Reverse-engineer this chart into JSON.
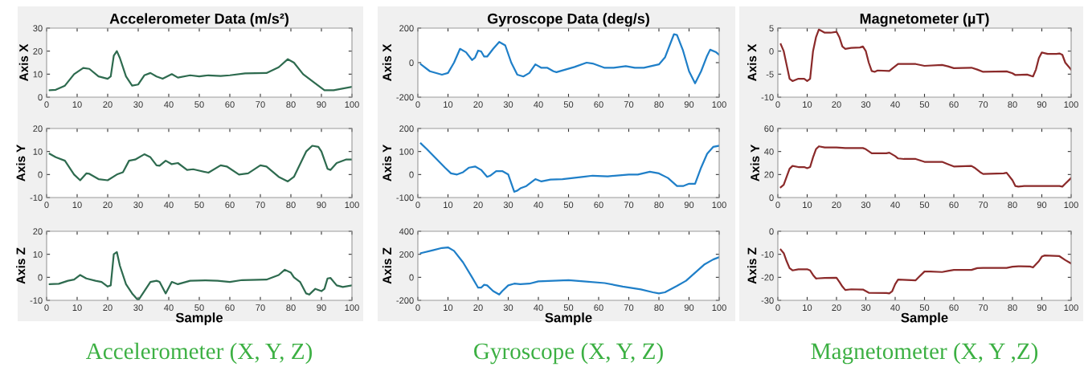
{
  "chart_data": [
    {
      "type": "line",
      "title": "Accelerometer Data (m/s²)",
      "ylabel": "Axis X",
      "color": "#2e6b4f",
      "xlim": [
        0,
        100
      ],
      "xticks": [
        0,
        10,
        20,
        30,
        40,
        50,
        60,
        70,
        80,
        90,
        100
      ],
      "ylim": [
        0,
        30
      ],
      "yticks": [
        0,
        10,
        20,
        30
      ],
      "x": [
        1,
        3,
        6,
        9,
        12,
        14,
        17,
        20,
        21,
        22,
        23,
        24,
        26,
        28,
        30,
        32,
        34,
        36,
        38,
        41,
        43,
        47,
        50,
        53,
        57,
        60,
        65,
        72,
        76,
        79,
        81,
        84,
        88,
        91,
        94,
        100
      ],
      "values": [
        3,
        3.2,
        5,
        10,
        12.7,
        12.3,
        9,
        8,
        9,
        18,
        20,
        17,
        9,
        5,
        5.5,
        9.5,
        10.5,
        9,
        8,
        10,
        8.5,
        9.5,
        9,
        9.5,
        9.2,
        9.5,
        10.3,
        10.5,
        13,
        16.5,
        15,
        10,
        6,
        3,
        3,
        4.5
      ]
    },
    {
      "type": "line",
      "ylabel": "Axis Y",
      "color": "#2e6b4f",
      "xlim": [
        0,
        100
      ],
      "xticks": [
        0,
        10,
        20,
        30,
        40,
        50,
        60,
        70,
        80,
        90,
        100
      ],
      "ylim": [
        -10,
        20
      ],
      "yticks": [
        -10,
        0,
        10,
        20
      ],
      "x": [
        1,
        3,
        6,
        9,
        11,
        13,
        14,
        17,
        20,
        23,
        25,
        27,
        29,
        32,
        34,
        36,
        37,
        39,
        41,
        43,
        46,
        48,
        53,
        57,
        59,
        63,
        66,
        70,
        72,
        76,
        79,
        81,
        85,
        87,
        89,
        90,
        92,
        93,
        95,
        98,
        100
      ],
      "values": [
        9,
        7.5,
        6,
        0,
        -2.5,
        0.5,
        0.3,
        -2,
        -2.5,
        0,
        1,
        6,
        6.5,
        8.8,
        7.5,
        4,
        3.8,
        6,
        4.5,
        5,
        2,
        2.3,
        0.8,
        4,
        3.5,
        0,
        0.5,
        4,
        3.5,
        -1,
        -3,
        -1,
        10,
        12.5,
        12,
        10,
        2.5,
        2,
        5,
        6.5,
        6.5
      ]
    },
    {
      "type": "line",
      "ylabel": "Axis Z",
      "xlabel": "Sample",
      "color": "#2e6b4f",
      "xlim": [
        0,
        100
      ],
      "xticks": [
        0,
        10,
        20,
        30,
        40,
        50,
        60,
        70,
        80,
        90,
        100
      ],
      "ylim": [
        -10,
        20
      ],
      "yticks": [
        -10,
        0,
        10,
        20
      ],
      "annotations": [
        "Accelerometer (X, Y, Z)"
      ],
      "x": [
        1,
        4,
        7,
        9,
        11,
        13,
        16,
        18,
        20,
        21,
        22,
        23,
        24,
        26,
        28,
        30,
        32,
        34,
        36,
        37,
        39,
        41,
        43,
        47,
        52,
        56,
        60,
        64,
        72,
        76,
        78,
        80,
        81,
        83,
        85,
        86,
        88,
        90,
        91,
        92,
        93,
        95,
        97,
        100
      ],
      "values": [
        -3,
        -2.8,
        -1.5,
        -1,
        1,
        -0.5,
        -1.5,
        -2,
        -4,
        -3.5,
        10,
        11,
        5,
        -3,
        -7,
        -10,
        -6,
        -2,
        -1.5,
        -2,
        -7,
        -2,
        -3,
        -1.5,
        -1.3,
        -1.5,
        -2,
        -1.2,
        -1,
        1,
        3.3,
        2,
        0,
        -2,
        -7,
        -7.5,
        -5,
        -6,
        -5,
        -0.5,
        -0.3,
        -3.5,
        -4.2,
        -3.5
      ]
    },
    {
      "type": "line",
      "title": "Gyroscope Data (deg/s)",
      "ylabel": "Axis X",
      "color": "#1f7fc8",
      "xlim": [
        0,
        100
      ],
      "xticks": [
        0,
        10,
        20,
        30,
        40,
        50,
        60,
        70,
        80,
        90,
        100
      ],
      "ylim": [
        -200,
        200
      ],
      "yticks": [
        -200,
        0,
        200
      ],
      "x": [
        1,
        4,
        8,
        10,
        12,
        14,
        16,
        18,
        19,
        20,
        21,
        22,
        23,
        25,
        27,
        29,
        31,
        33,
        35,
        37,
        39,
        41,
        43,
        45,
        46,
        52,
        56,
        58,
        62,
        65,
        69,
        72,
        75,
        80,
        82,
        85,
        86,
        88,
        90,
        92,
        94,
        96,
        97,
        99,
        100
      ],
      "values": [
        -10,
        -50,
        -70,
        -60,
        0,
        80,
        60,
        15,
        30,
        70,
        65,
        35,
        35,
        80,
        120,
        100,
        0,
        -70,
        -80,
        -60,
        -10,
        -30,
        -30,
        -50,
        -55,
        -25,
        0,
        -5,
        -30,
        -30,
        -20,
        -30,
        -30,
        -10,
        30,
        165,
        160,
        70,
        -50,
        -120,
        -50,
        40,
        75,
        60,
        45
      ]
    },
    {
      "type": "line",
      "ylabel": "Axis Y",
      "color": "#1f7fc8",
      "xlim": [
        0,
        100
      ],
      "xticks": [
        0,
        10,
        20,
        30,
        40,
        50,
        60,
        70,
        80,
        90,
        100
      ],
      "ylim": [
        -100,
        200
      ],
      "yticks": [
        -100,
        0,
        100,
        200
      ],
      "x": [
        1,
        3,
        6,
        9,
        11,
        13,
        15,
        17,
        19,
        21,
        23,
        24,
        26,
        28,
        30,
        32,
        33,
        34,
        36,
        39,
        41,
        44,
        48,
        55,
        58,
        63,
        70,
        73,
        77,
        80,
        83,
        86,
        88,
        90,
        92,
        94,
        96,
        98,
        100
      ],
      "values": [
        135,
        110,
        70,
        30,
        5,
        0,
        10,
        30,
        35,
        20,
        -10,
        -5,
        15,
        15,
        0,
        -75,
        -70,
        -60,
        -50,
        -20,
        -30,
        -22,
        -20,
        -10,
        -5,
        -8,
        0,
        0,
        12,
        5,
        -15,
        -50,
        -50,
        -40,
        -40,
        30,
        90,
        120,
        125
      ]
    },
    {
      "type": "line",
      "ylabel": "Axis Z",
      "xlabel": "Sample",
      "color": "#1f7fc8",
      "xlim": [
        0,
        100
      ],
      "xticks": [
        0,
        10,
        20,
        30,
        40,
        50,
        60,
        70,
        80,
        90,
        100
      ],
      "ylim": [
        -200,
        400
      ],
      "yticks": [
        -200,
        0,
        200,
        400
      ],
      "annotations": [
        "Gyroscope (X, Y, Z)"
      ],
      "x": [
        1,
        5,
        8,
        10,
        12,
        15,
        18,
        20,
        21,
        22,
        23,
        25,
        27,
        28,
        30,
        32,
        34,
        37,
        40,
        45,
        50,
        55,
        62,
        68,
        74,
        78,
        80,
        82,
        86,
        89,
        92,
        95,
        98,
        100
      ],
      "values": [
        210,
        235,
        255,
        260,
        230,
        130,
        0,
        -90,
        -90,
        -65,
        -70,
        -120,
        -150,
        -120,
        -70,
        -55,
        -60,
        -55,
        -35,
        -30,
        -25,
        -35,
        -50,
        -80,
        -105,
        -130,
        -140,
        -130,
        -75,
        -30,
        40,
        110,
        155,
        175
      ]
    },
    {
      "type": "line",
      "title": "Magnetometer (µT)",
      "ylabel": "Axis X",
      "color": "#8b2a2a",
      "xlim": [
        0,
        100
      ],
      "xticks": [
        0,
        10,
        20,
        30,
        40,
        50,
        60,
        70,
        80,
        90,
        100
      ],
      "ylim": [
        -10,
        5
      ],
      "yticks": [
        -10,
        -5,
        0,
        5
      ],
      "x": [
        1,
        2,
        3,
        4,
        5,
        7,
        9,
        10,
        11,
        12,
        13,
        14,
        16,
        18,
        20,
        21,
        22,
        23,
        25,
        28,
        29,
        30,
        31,
        32,
        33,
        34,
        38,
        39,
        41,
        47,
        50,
        56,
        58,
        60,
        66,
        68,
        70,
        78,
        80,
        81,
        85,
        87,
        88,
        89,
        90,
        92,
        95,
        96,
        97,
        98,
        100
      ],
      "values": [
        1.5,
        0,
        -3,
        -6,
        -6.5,
        -6,
        -6,
        -6.5,
        -6,
        0,
        3,
        4.7,
        4,
        4,
        4.2,
        3,
        1,
        0.5,
        0.7,
        0.8,
        1,
        0,
        -2.5,
        -4.3,
        -4.5,
        -4.2,
        -4.3,
        -3.8,
        -2.8,
        -2.8,
        -3.2,
        -3,
        -3.3,
        -3.7,
        -3.6,
        -4,
        -4.5,
        -4.4,
        -4.8,
        -5.2,
        -5.1,
        -5.5,
        -4,
        -1.5,
        -0.3,
        -0.6,
        -0.6,
        -0.5,
        -0.8,
        -2.5,
        -4
      ]
    },
    {
      "type": "line",
      "ylabel": "Axis Y",
      "color": "#8b2a2a",
      "xlim": [
        0,
        100
      ],
      "xticks": [
        0,
        10,
        20,
        30,
        40,
        50,
        60,
        70,
        80,
        90,
        100
      ],
      "ylim": [
        0,
        60
      ],
      "yticks": [
        0,
        20,
        40,
        60
      ],
      "x": [
        1,
        2,
        3,
        4,
        5,
        7,
        9,
        10,
        11,
        12,
        13,
        14,
        16,
        20,
        23,
        29,
        30,
        32,
        37,
        38,
        40,
        41,
        43,
        47,
        50,
        56,
        58,
        60,
        66,
        67,
        69,
        70,
        77,
        78,
        80,
        81,
        82,
        84,
        96,
        97,
        98,
        100
      ],
      "values": [
        9,
        11,
        18,
        25,
        27.5,
        26.5,
        26.5,
        25.5,
        26.5,
        35,
        42,
        44.5,
        43.5,
        43.5,
        43,
        43,
        42,
        38.5,
        38.5,
        39,
        36,
        34,
        33.5,
        33.5,
        31,
        31,
        29,
        27,
        27.5,
        26,
        22,
        20.5,
        21,
        21.5,
        15,
        10,
        9.5,
        10,
        10,
        9.5,
        12,
        17
      ]
    },
    {
      "type": "line",
      "ylabel": "Axis Z",
      "xlabel": "Sample",
      "color": "#8b2a2a",
      "xlim": [
        0,
        100
      ],
      "xticks": [
        0,
        10,
        20,
        30,
        40,
        50,
        60,
        70,
        80,
        90,
        100
      ],
      "ylim": [
        -30,
        0
      ],
      "yticks": [
        -30,
        -20,
        -10,
        0
      ],
      "annotations": [
        "Magnetometer (X, Y ,Z)"
      ],
      "x": [
        1,
        2,
        3,
        4,
        5,
        7,
        10,
        11,
        12,
        13,
        16,
        20,
        21,
        22,
        23,
        25,
        29,
        30,
        31,
        37,
        38,
        39,
        40,
        41,
        47,
        48,
        50,
        52,
        56,
        58,
        60,
        66,
        68,
        70,
        78,
        80,
        82,
        86,
        87,
        89,
        90,
        91,
        96,
        98,
        100
      ],
      "values": [
        -8,
        -9.5,
        -13,
        -16,
        -17,
        -16.5,
        -16.5,
        -17,
        -19,
        -20.5,
        -20.3,
        -20.2,
        -22,
        -24,
        -25.5,
        -25.2,
        -25.3,
        -26,
        -26.7,
        -26.8,
        -27,
        -26,
        -23,
        -21,
        -21.3,
        -20,
        -17.5,
        -17.5,
        -17.7,
        -17.2,
        -16.8,
        -16.8,
        -16,
        -15.9,
        -15.9,
        -15.4,
        -15.2,
        -15.3,
        -15.7,
        -13,
        -11,
        -10.5,
        -10.8,
        -12.5,
        -14
      ]
    }
  ]
}
